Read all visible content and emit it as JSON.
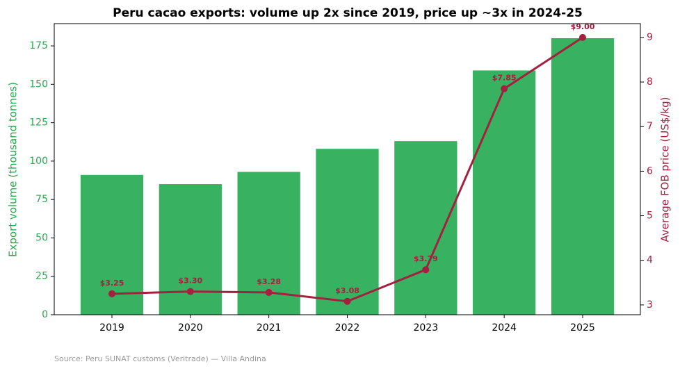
{
  "chart_data": {
    "type": "bar_line",
    "title": "Peru cacao exports: volume up 2x since 2019, price up ~3x in 2024-25",
    "categories": [
      "2019",
      "2020",
      "2021",
      "2022",
      "2023",
      "2024",
      "2025"
    ],
    "series": [
      {
        "name": "Export volume",
        "type": "bar",
        "color": "#38b261",
        "values": [
          91,
          85,
          93,
          108,
          113,
          159,
          180
        ]
      },
      {
        "name": "Average FOB price",
        "type": "line",
        "axis": "y2",
        "color": "#a3203f",
        "values": [
          3.25,
          3.3,
          3.28,
          3.08,
          3.79,
          7.85,
          9.0
        ],
        "value_labels": [
          "$3.25",
          "$3.30",
          "$3.28",
          "$3.08",
          "$3.79",
          "$7.85",
          "$9.00"
        ]
      }
    ],
    "ylabel": "Export volume (thousand tonnes)",
    "y2label": "Average FOB price (US$/kg)",
    "ylim": [
      0,
      189.5
    ],
    "yticks": [
      0,
      25,
      50,
      75,
      100,
      125,
      150,
      175
    ],
    "y2lim": [
      2.78,
      9.31
    ],
    "y2ticks": [
      3,
      4,
      5,
      6,
      7,
      8,
      9
    ],
    "source": "Source: Peru SUNAT customs (Veritrade) — Villa Andina"
  }
}
